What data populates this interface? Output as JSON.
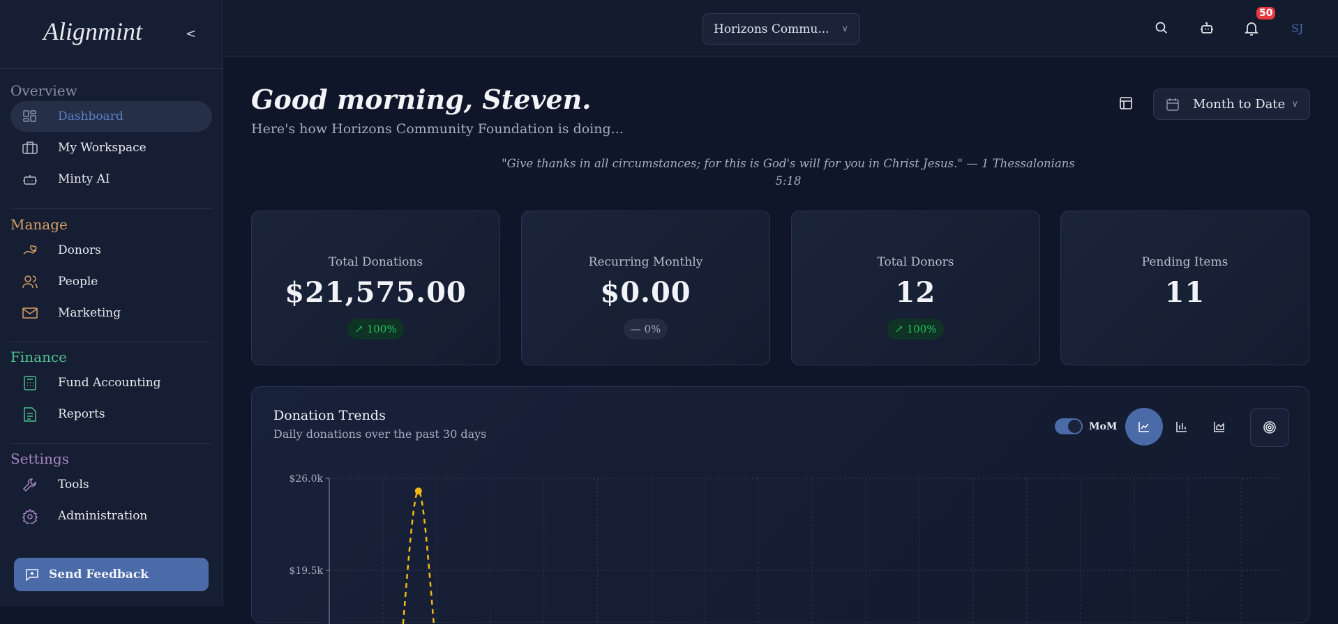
{
  "sidebar": {
    "logo": "Alignmint",
    "sections": [
      {
        "title": "Overview",
        "color": "#8a93a8",
        "items": [
          {
            "label": "Dashboard",
            "icon": "dashboard-grid-icon",
            "active": true
          },
          {
            "label": "My Workspace",
            "icon": "briefcase-icon"
          },
          {
            "label": "Minty AI",
            "icon": "bot-icon"
          }
        ]
      },
      {
        "title": "Manage",
        "color": "#d9a066",
        "items": [
          {
            "label": "Donors",
            "icon": "hand-heart-icon"
          },
          {
            "label": "People",
            "icon": "users-icon"
          },
          {
            "label": "Marketing",
            "icon": "mail-icon"
          }
        ]
      },
      {
        "title": "Finance",
        "color": "#4fbf8f",
        "items": [
          {
            "label": "Fund Accounting",
            "icon": "calculator-icon"
          },
          {
            "label": "Reports",
            "icon": "file-text-icon"
          }
        ]
      },
      {
        "title": "Settings",
        "color": "#a888c8",
        "items": [
          {
            "label": "Tools",
            "icon": "wrench-icon"
          },
          {
            "label": "Administration",
            "icon": "gear-icon"
          }
        ]
      }
    ],
    "feedback_label": "Send Feedback"
  },
  "header": {
    "org_selector": "Horizons Commu...",
    "notification_count": "50",
    "avatar_initials": "SJ"
  },
  "main": {
    "greeting": "Good morning, Steven.",
    "subtitle": "Here's how Horizons Community Foundation is doing...",
    "date_range": "Month to Date",
    "quote": "\"Give thanks in all circumstances; for this is God's will for you in Christ Jesus.\" — 1 Thessalonians 5:18",
    "cards": [
      {
        "label": "Total Donations",
        "value": "$21,575.00",
        "change": "100%",
        "trend": "up"
      },
      {
        "label": "Recurring Monthly",
        "value": "$0.00",
        "change": "0%",
        "trend": "flat"
      },
      {
        "label": "Total Donors",
        "value": "12",
        "change": "100%",
        "trend": "up"
      },
      {
        "label": "Pending Items",
        "value": "11"
      }
    ]
  },
  "chart_panel": {
    "title": "Donation Trends",
    "subtitle": "Daily donations over the past 30 days",
    "mom_label": "MoM",
    "mom_enabled": true,
    "chart_type_selected": "line"
  },
  "chart_data": {
    "type": "line",
    "y_ticks": [
      "$26.0k",
      "$19.5k"
    ],
    "ylim_top": 26000,
    "grid": true,
    "series": [
      {
        "style": "dashed",
        "color": "#f5b915",
        "peak_value": 25100,
        "peak_day_index": 3
      }
    ]
  }
}
